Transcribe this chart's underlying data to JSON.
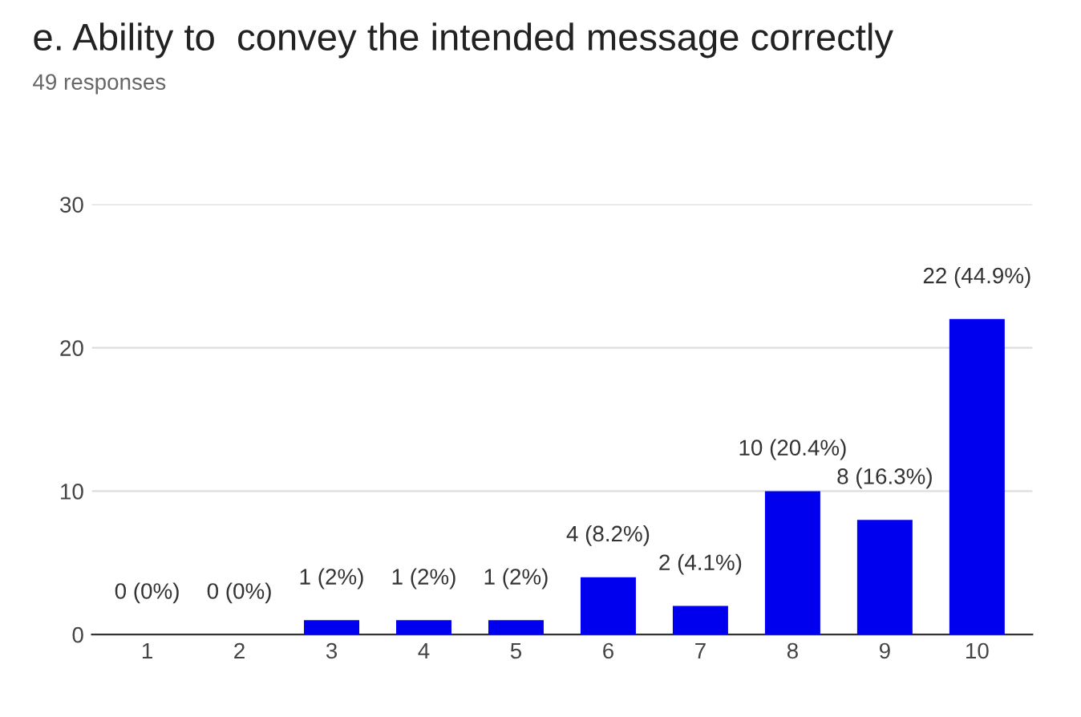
{
  "chart_data": {
    "type": "bar",
    "title": "e. Ability to  convey the intended message correctly",
    "subtitle": "49 responses",
    "categories": [
      "1",
      "2",
      "3",
      "4",
      "5",
      "6",
      "7",
      "8",
      "9",
      "10"
    ],
    "values": [
      0,
      0,
      1,
      1,
      1,
      4,
      2,
      10,
      8,
      22
    ],
    "value_labels": [
      "0 (0%)",
      "0 (0%)",
      "1 (2%)",
      "1 (2%)",
      "1 (2%)",
      "4 (8.2%)",
      "2 (4.1%)",
      "10 (20.4%)",
      "8 (16.3%)",
      "22 (44.9%)"
    ],
    "color": "#0000ee",
    "ylim": [
      0,
      30
    ],
    "yticks": [
      0,
      10,
      20,
      30
    ],
    "grid": "y",
    "legend": false
  }
}
